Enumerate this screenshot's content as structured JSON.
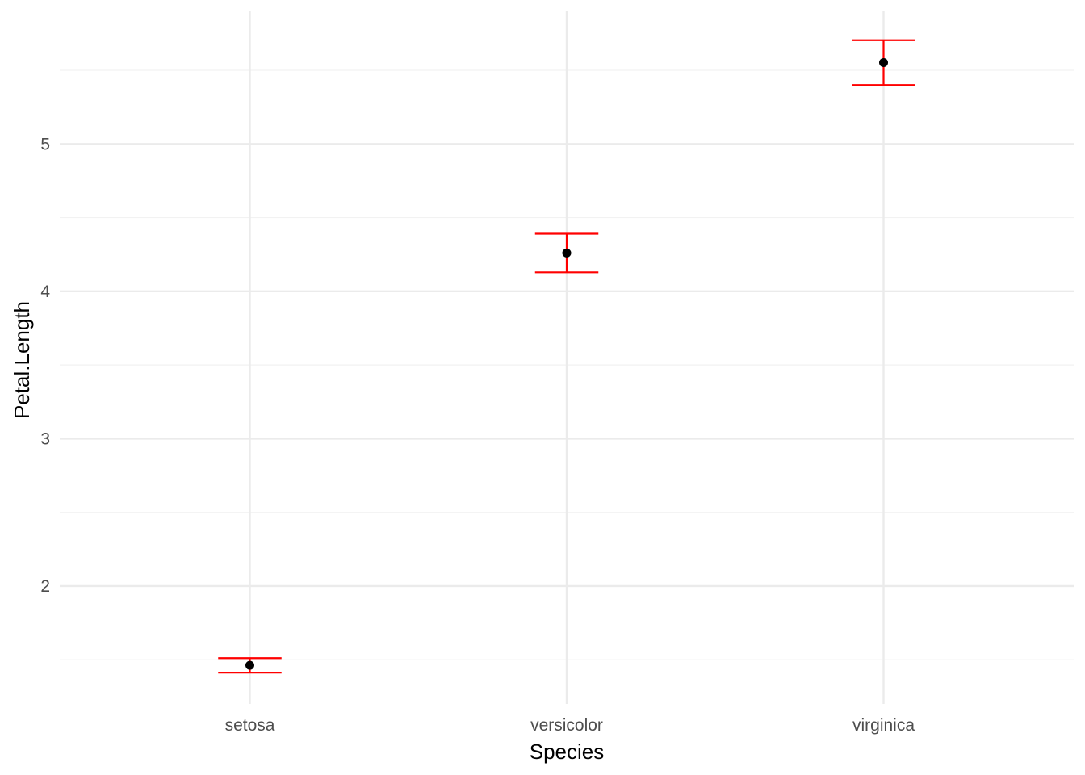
{
  "chart_data": {
    "type": "errorbar",
    "title": "",
    "xlabel": "Species",
    "ylabel": "Petal.Length",
    "categories": [
      "setosa",
      "versicolor",
      "virginica"
    ],
    "series": [
      {
        "mean": [
          1.462,
          4.26,
          5.552
        ],
        "lower": [
          1.413,
          4.129,
          5.4
        ],
        "upper": [
          1.511,
          4.391,
          5.704
        ]
      }
    ],
    "ylim": [
      1.2,
      5.9
    ],
    "yticks": [
      2,
      3,
      4,
      5
    ],
    "y_minor_ticks": [
      1.5,
      2.5,
      3.5,
      4.5,
      5.5
    ],
    "grid": true,
    "legend": "none",
    "colors": {
      "point": "#000000",
      "errorbar": "#ff0000",
      "grid_major": "#ebebeb",
      "grid_minor": "#f2f2f2"
    }
  }
}
